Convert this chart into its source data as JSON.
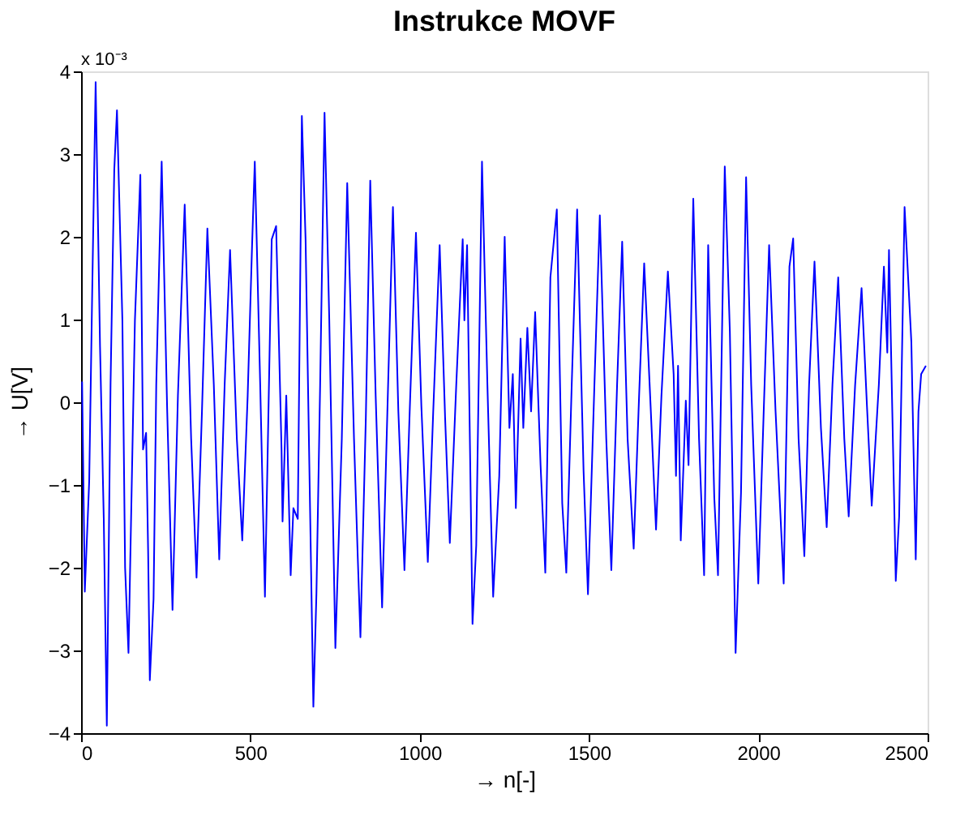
{
  "chart_data": {
    "type": "line",
    "title": "Instrukce MOVF",
    "xlabel": "→ n[-]",
    "ylabel": "→ U[V]",
    "annotations": [
      "x 10⁻³"
    ],
    "xlim": [
      0,
      2500
    ],
    "xticks": [
      0,
      500,
      1000,
      1500,
      2000,
      2500
    ],
    "ylim": [
      -4,
      4
    ],
    "yticks": [
      -4,
      -3,
      -2,
      -1,
      0,
      1,
      2,
      3,
      4
    ],
    "grid": false,
    "marker": "none",
    "line_style": "solid",
    "series": [
      {
        "color": "#0000ff",
        "x": [
          3,
          11,
          24,
          32,
          43,
          56,
          67,
          76,
          87,
          98,
          106,
          122,
          130,
          140,
          159,
          175,
          183,
          192,
          198,
          203,
          214,
          222,
          238,
          254,
          270,
          286,
          306,
          325,
          341,
          357,
          373,
          392,
          408,
          424,
          440,
          460,
          476,
          492,
          505,
          513,
          529,
          543,
          563,
          576,
          592,
          595,
          606,
          619,
          627,
          640,
          652,
          663,
          686,
          695,
          706,
          719,
          733,
          751,
          770,
          786,
          806,
          817,
          825,
          841,
          854,
          870,
          889,
          905,
          921,
          937,
          955,
          971,
          989,
          1005,
          1024,
          1040,
          1059,
          1075,
          1089,
          1108,
          1127,
          1132,
          1140,
          1156,
          1167,
          1184,
          1200,
          1217,
          1235,
          1251,
          1265,
          1275,
          1284,
          1298,
          1306,
          1318,
          1329,
          1341,
          1357,
          1371,
          1386,
          1405,
          1421,
          1433,
          1449,
          1465,
          1484,
          1497,
          1516,
          1532,
          1551,
          1566,
          1583,
          1598,
          1614,
          1632,
          1648,
          1663,
          1682,
          1698,
          1714,
          1733,
          1750,
          1757,
          1763,
          1771,
          1786,
          1794,
          1808,
          1825,
          1840,
          1852,
          1870,
          1881,
          1901,
          1916,
          1933,
          1949,
          1964,
          1979,
          2000,
          2016,
          2032,
          2051,
          2063,
          2075,
          2092,
          2103,
          2119,
          2136,
          2150,
          2166,
          2185,
          2202,
          2219,
          2236,
          2254,
          2267,
          2286,
          2305,
          2321,
          2335,
          2356,
          2371,
          2381,
          2386,
          2402,
          2406,
          2416,
          2432,
          2452,
          2465,
          2473,
          2481,
          2495
        ],
        "values": [
          0.25,
          -2.29,
          -0.95,
          1.12,
          3.87,
          0.67,
          -1.41,
          -3.91,
          0.21,
          2.81,
          3.53,
          0.99,
          -2.0,
          -3.03,
          0.99,
          2.75,
          -0.57,
          -0.37,
          -1.8,
          -3.36,
          -2.38,
          0.21,
          2.91,
          -0.05,
          -2.51,
          0.08,
          2.39,
          -0.44,
          -2.12,
          -0.11,
          2.1,
          0.21,
          -1.9,
          0.21,
          1.84,
          -0.44,
          -1.67,
          0.08,
          1.9,
          2.91,
          0.21,
          -2.35,
          1.97,
          2.13,
          -0.57,
          -1.44,
          0.08,
          -2.09,
          -1.28,
          -1.41,
          3.46,
          1.97,
          -3.68,
          -2.32,
          0.21,
          3.5,
          0.99,
          -2.97,
          -0.44,
          2.65,
          -0.44,
          -1.86,
          -2.84,
          -0.18,
          2.68,
          0.08,
          -2.48,
          -0.05,
          2.36,
          -0.11,
          -2.03,
          -0.05,
          2.05,
          -0.05,
          -1.93,
          -0.11,
          1.9,
          -0.18,
          -1.7,
          0.21,
          1.97,
          0.99,
          1.9,
          -2.68,
          -1.73,
          2.91,
          0.21,
          -2.35,
          -0.89,
          2.0,
          -0.31,
          0.34,
          -1.28,
          0.77,
          -0.31,
          0.9,
          -0.11,
          1.09,
          -0.76,
          -2.06,
          1.51,
          2.33,
          -1.22,
          -2.06,
          0.21,
          2.33,
          -0.83,
          -2.32,
          0.21,
          2.26,
          -0.44,
          -2.03,
          0.21,
          1.94,
          -0.44,
          -1.77,
          0.08,
          1.68,
          -0.05,
          -1.54,
          0.08,
          1.58,
          0.34,
          -0.89,
          0.44,
          -1.67,
          0.02,
          -0.76,
          2.46,
          -0.44,
          -2.09,
          1.9,
          -1.15,
          -2.09,
          2.85,
          0.86,
          -3.03,
          -1.09,
          2.72,
          0.21,
          -2.19,
          -0.11,
          1.9,
          -0.11,
          -1.15,
          -2.19,
          1.64,
          1.98,
          -0.44,
          -1.86,
          0.21,
          1.7,
          -0.31,
          -1.51,
          0.21,
          1.51,
          -0.44,
          -1.38,
          0.21,
          1.38,
          -0.05,
          -1.25,
          0.21,
          1.64,
          0.6,
          1.84,
          -1.35,
          -2.16,
          -1.38,
          2.36,
          0.73,
          -1.9,
          -0.11,
          0.34,
          0.44
        ]
      }
    ]
  }
}
